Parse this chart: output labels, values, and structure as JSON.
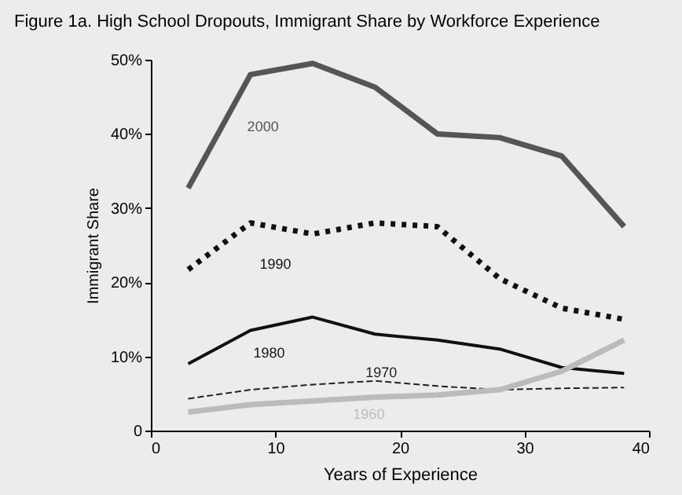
{
  "chart_data": {
    "type": "line",
    "title": "Figure 1a. High School Dropouts, Immigrant Share by Workforce Experience",
    "xlabel": "Years of Experience",
    "ylabel": "Immigrant Share",
    "x": [
      3,
      8,
      13,
      18,
      23,
      28,
      33,
      38
    ],
    "series": [
      {
        "name": "2000",
        "color": "#555555",
        "line_style": "solid",
        "values": [
          32.7,
          48,
          49.5,
          46.3,
          40,
          39.5,
          37,
          27.5
        ]
      },
      {
        "name": "1990",
        "color": "#111111",
        "line_style": "dotted",
        "values": [
          21.7,
          28,
          26.5,
          28,
          27.5,
          20.5,
          16.5,
          15
        ]
      },
      {
        "name": "1980",
        "color": "#111111",
        "line_style": "solid",
        "values": [
          9,
          13.5,
          15.3,
          13,
          12.2,
          11,
          8.5,
          7.7
        ]
      },
      {
        "name": "1970",
        "color": "#222222",
        "line_style": "dashed",
        "values": [
          4.3,
          5.5,
          6.2,
          6.7,
          6,
          5.5,
          5.7,
          5.8
        ]
      },
      {
        "name": "1960",
        "color": "#bbbbbb",
        "line_style": "solid",
        "values": [
          2.5,
          3.5,
          4,
          4.5,
          4.8,
          5.5,
          8,
          12.2
        ]
      }
    ],
    "xlim": [
      0,
      40
    ],
    "xticks": [
      0,
      10,
      20,
      30,
      40
    ],
    "ylim": [
      0,
      50
    ],
    "yticks": [
      {
        "value": 0,
        "label": "0"
      },
      {
        "value": 10,
        "label": "10%"
      },
      {
        "value": 20,
        "label": "20%"
      },
      {
        "value": 30,
        "label": "30%"
      },
      {
        "value": 40,
        "label": "40%"
      },
      {
        "value": 50,
        "label": "50%"
      }
    ],
    "grid": false,
    "marker": "none"
  }
}
